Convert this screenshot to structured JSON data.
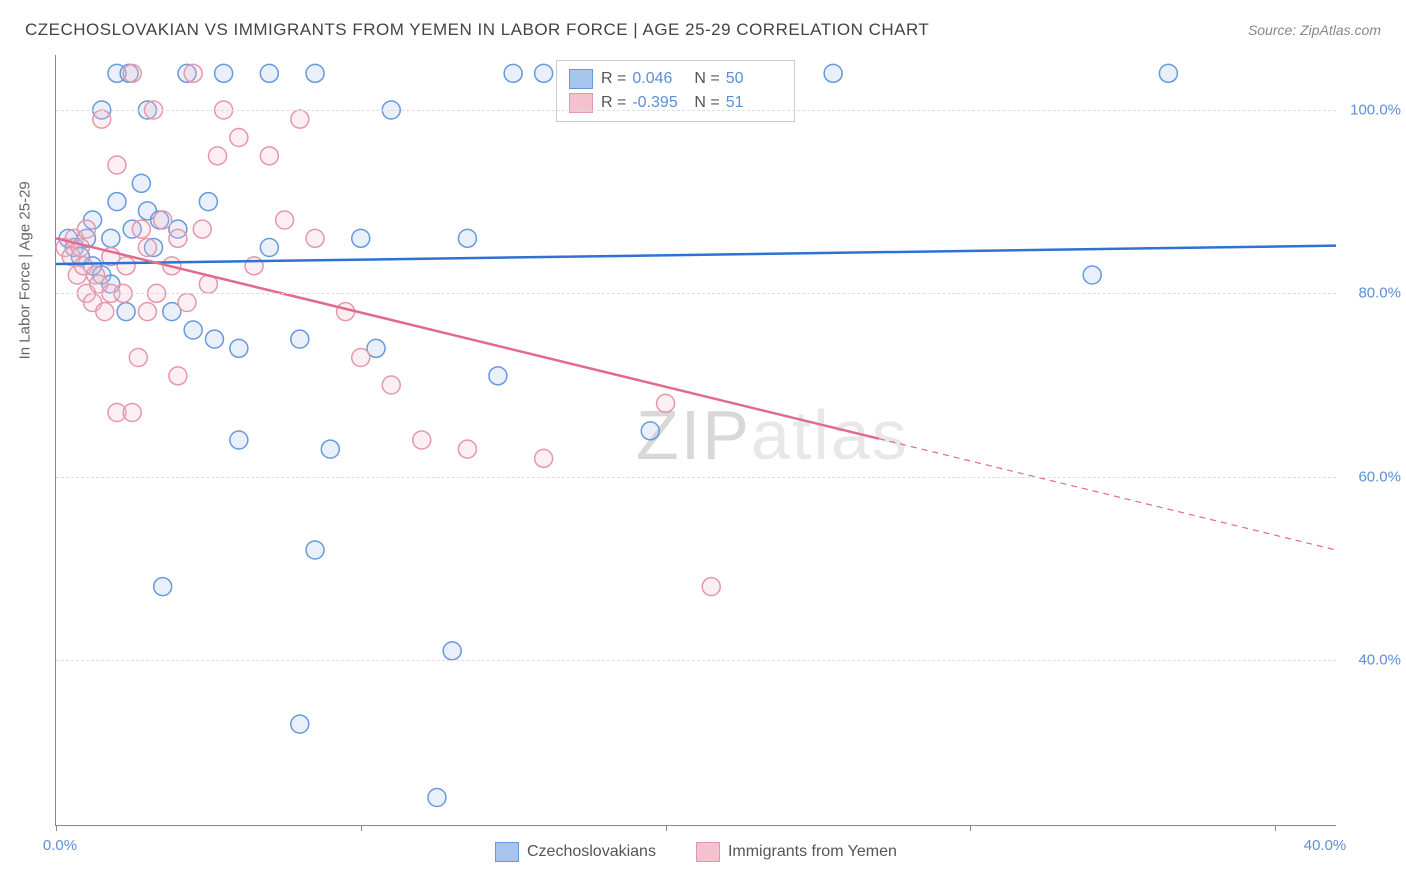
{
  "title": "CZECHOSLOVAKIAN VS IMMIGRANTS FROM YEMEN IN LABOR FORCE | AGE 25-29 CORRELATION CHART",
  "source": "Source: ZipAtlas.com",
  "y_axis_label": "In Labor Force | Age 25-29",
  "watermark": {
    "zip": "ZIP",
    "atlas": "atlas"
  },
  "chart": {
    "type": "scatter",
    "background_color": "#ffffff",
    "grid_color": "#dddddd",
    "axis_color": "#888888",
    "xlim": [
      0,
      42
    ],
    "ylim": [
      22,
      106
    ],
    "x_ticks": [
      0,
      10,
      20,
      30,
      40
    ],
    "x_tick_labels": [
      "0.0%",
      "",
      "",
      "",
      "40.0%"
    ],
    "y_gridlines": [
      40,
      60,
      80,
      100
    ],
    "y_tick_labels": [
      "40.0%",
      "60.0%",
      "80.0%",
      "100.0%"
    ],
    "marker_radius": 9,
    "marker_stroke_width": 1.5,
    "marker_fill_opacity": 0.25,
    "trend_line_width": 2.5,
    "series": [
      {
        "name": "Czechoslovakians",
        "color_stroke": "#6699dd",
        "color_fill": "#a7c5ed",
        "line_color": "#2f72d4",
        "r_value": "0.046",
        "n_value": "50",
        "trend": {
          "x1": 0,
          "y1": 83.2,
          "x2": 42,
          "y2": 85.2,
          "solid_until_x": 42
        },
        "points": [
          [
            0.4,
            86
          ],
          [
            0.6,
            85
          ],
          [
            0.8,
            84
          ],
          [
            1.0,
            86
          ],
          [
            1.2,
            88
          ],
          [
            1.2,
            83
          ],
          [
            1.5,
            100
          ],
          [
            1.5,
            82
          ],
          [
            1.8,
            86
          ],
          [
            1.8,
            81
          ],
          [
            2.0,
            104
          ],
          [
            2.0,
            90
          ],
          [
            2.3,
            78
          ],
          [
            2.4,
            104
          ],
          [
            2.5,
            87
          ],
          [
            2.8,
            92
          ],
          [
            3.0,
            89
          ],
          [
            3.0,
            100
          ],
          [
            3.2,
            85
          ],
          [
            3.4,
            88
          ],
          [
            3.5,
            48
          ],
          [
            3.8,
            78
          ],
          [
            4.0,
            87
          ],
          [
            4.3,
            104
          ],
          [
            4.5,
            76
          ],
          [
            5.0,
            90
          ],
          [
            5.2,
            75
          ],
          [
            5.5,
            104
          ],
          [
            6.0,
            74
          ],
          [
            6.0,
            64
          ],
          [
            7.0,
            104
          ],
          [
            7.0,
            85
          ],
          [
            8.0,
            33
          ],
          [
            8.0,
            75
          ],
          [
            8.5,
            104
          ],
          [
            8.5,
            52
          ],
          [
            9.0,
            63
          ],
          [
            10.0,
            86
          ],
          [
            10.5,
            74
          ],
          [
            11.0,
            100
          ],
          [
            12.5,
            25
          ],
          [
            13.0,
            41
          ],
          [
            13.5,
            86
          ],
          [
            14.5,
            71
          ],
          [
            15.0,
            104
          ],
          [
            16.0,
            104
          ],
          [
            19.5,
            65
          ],
          [
            25.5,
            104
          ],
          [
            34.0,
            82
          ],
          [
            36.5,
            104
          ]
        ]
      },
      {
        "name": "Immigrants from Yemen",
        "color_stroke": "#e597ab",
        "color_fill": "#f4c1cf",
        "line_color": "#e06b8b",
        "r_value": "-0.395",
        "n_value": "51",
        "trend": {
          "x1": 0,
          "y1": 86.0,
          "x2": 42,
          "y2": 52.0,
          "solid_until_x": 27
        },
        "points": [
          [
            0.3,
            85
          ],
          [
            0.5,
            84
          ],
          [
            0.6,
            86
          ],
          [
            0.7,
            82
          ],
          [
            0.8,
            85
          ],
          [
            0.9,
            83
          ],
          [
            1.0,
            80
          ],
          [
            1.0,
            87
          ],
          [
            1.2,
            79
          ],
          [
            1.3,
            82
          ],
          [
            1.4,
            81
          ],
          [
            1.5,
            99
          ],
          [
            1.6,
            78
          ],
          [
            1.8,
            80
          ],
          [
            1.8,
            84
          ],
          [
            2.0,
            67
          ],
          [
            2.0,
            94
          ],
          [
            2.2,
            80
          ],
          [
            2.3,
            83
          ],
          [
            2.5,
            104
          ],
          [
            2.5,
            67
          ],
          [
            2.7,
            73
          ],
          [
            2.8,
            87
          ],
          [
            3.0,
            85
          ],
          [
            3.0,
            78
          ],
          [
            3.2,
            100
          ],
          [
            3.3,
            80
          ],
          [
            3.5,
            88
          ],
          [
            3.8,
            83
          ],
          [
            4.0,
            86
          ],
          [
            4.0,
            71
          ],
          [
            4.3,
            79
          ],
          [
            4.5,
            104
          ],
          [
            4.8,
            87
          ],
          [
            5.0,
            81
          ],
          [
            5.3,
            95
          ],
          [
            5.5,
            100
          ],
          [
            6.0,
            97
          ],
          [
            6.5,
            83
          ],
          [
            7.0,
            95
          ],
          [
            7.5,
            88
          ],
          [
            8.0,
            99
          ],
          [
            8.5,
            86
          ],
          [
            9.5,
            78
          ],
          [
            10.0,
            73
          ],
          [
            11.0,
            70
          ],
          [
            12.0,
            64
          ],
          [
            13.5,
            63
          ],
          [
            16.0,
            62
          ],
          [
            20.0,
            68
          ],
          [
            21.5,
            48
          ]
        ]
      }
    ]
  },
  "legend_bottom": [
    {
      "label": "Czechoslovakians",
      "fill": "#a7c5ed",
      "stroke": "#6699dd"
    },
    {
      "label": "Immigrants from Yemen",
      "fill": "#f4c1cf",
      "stroke": "#e597ab"
    }
  ]
}
